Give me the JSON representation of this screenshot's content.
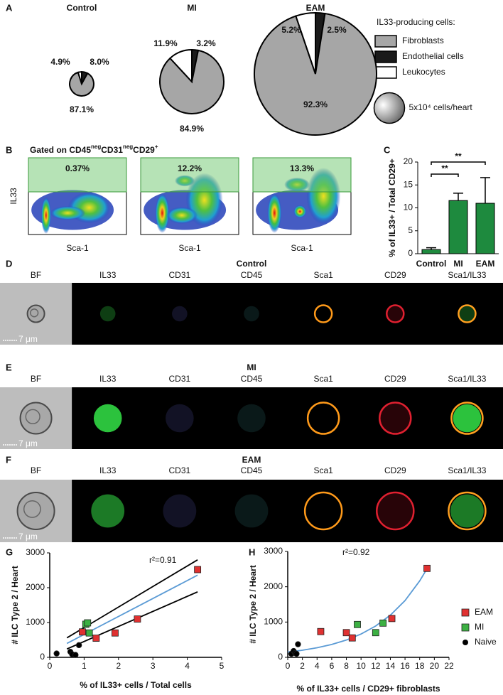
{
  "chart_data": [
    {
      "type": "pie",
      "panel": "A",
      "title": "Control",
      "categories": [
        "Fibroblasts",
        "Endothelial cells",
        "Leukocytes"
      ],
      "values": [
        87.1,
        8.0,
        4.9
      ],
      "value_labels": [
        "87.1%",
        "8.0%",
        "4.9%"
      ],
      "colors": [
        "#a6a6a6",
        "#1a1a1a",
        "#ffffff"
      ],
      "size": 31000,
      "legend_title": "IL33-producing cells:",
      "size_legend": {
        "value": 50000,
        "label": "5x10⁴ cells/heart"
      }
    },
    {
      "type": "pie",
      "title": "MI",
      "categories": [
        "Fibroblasts",
        "Endothelial cells",
        "Leukocytes"
      ],
      "values": [
        84.9,
        3.2,
        11.9
      ],
      "value_labels": [
        "84.9%",
        "3.2%",
        "11.9%"
      ],
      "colors": [
        "#a6a6a6",
        "#1a1a1a",
        "#ffffff"
      ],
      "size": 219000
    },
    {
      "type": "pie",
      "title": "EAM",
      "categories": [
        "Fibroblasts",
        "Endothelial cells",
        "Leukocytes"
      ],
      "values": [
        92.3,
        2.5,
        5.2
      ],
      "value_labels": [
        "92.3%",
        "2.5%",
        "5.2%"
      ],
      "colors": [
        "#a6a6a6",
        "#1a1a1a",
        "#ffffff"
      ],
      "size": 800000
    },
    {
      "type": "bar",
      "panel": "C",
      "categories": [
        "Control",
        "MI",
        "EAM"
      ],
      "values": [
        0.9,
        11.6,
        11.0
      ],
      "errors": [
        0.4,
        1.6,
        5.6
      ],
      "color": "#1e8a3e",
      "ylabel": "% of IL33+ / Total CD29+",
      "ylim": [
        0,
        20
      ],
      "yticks": [
        0,
        5,
        10,
        15,
        20
      ],
      "significance": [
        {
          "pair": [
            "Control",
            "EAM"
          ],
          "label": "**"
        },
        {
          "pair": [
            "Control",
            "MI"
          ],
          "label": "**"
        }
      ]
    },
    {
      "type": "scatter",
      "panel": "G",
      "annotation": "r²=0.91",
      "xlabel": "% of IL33+ cells / Total cells",
      "ylabel": "# ILC Type 2 / Heart",
      "xlim": [
        0,
        5
      ],
      "xticks": [
        0,
        1,
        2,
        3,
        4,
        5
      ],
      "ylim": [
        0,
        3000
      ],
      "yticks": [
        0,
        1000,
        2000,
        3000
      ],
      "legend": false,
      "series": [
        {
          "name": "EAM",
          "color": "#e03131",
          "marker": "square",
          "x": [
            0.95,
            1.35,
            1.9,
            2.55,
            4.3
          ],
          "values": [
            730,
            550,
            700,
            1100,
            2520
          ]
        },
        {
          "name": "MI",
          "color": "#3cb043",
          "marker": "square",
          "x": [
            1.05,
            1.1,
            1.15
          ],
          "values": [
            950,
            990,
            700
          ]
        },
        {
          "name": "Naive",
          "color": "#000000",
          "marker": "circle",
          "x": [
            0.2,
            0.6,
            0.65,
            0.75,
            0.85
          ],
          "values": [
            110,
            160,
            90,
            70,
            350
          ]
        }
      ],
      "lines": [
        {
          "color": "#000000",
          "x": [
            0.5,
            4.3
          ],
          "values": [
            560,
            2800
          ]
        },
        {
          "color": "#000000",
          "x": [
            0.5,
            4.3
          ],
          "values": [
            240,
            1880
          ]
        },
        {
          "color": "#5b9bd5",
          "x": [
            0.5,
            4.3
          ],
          "values": [
            400,
            2360
          ]
        }
      ]
    },
    {
      "type": "scatter",
      "panel": "H",
      "annotation": "r²=0.92",
      "xlabel": "% of IL33+ cells / CD29+ fibroblasts",
      "ylabel": "# ILC Type 2 / Heart",
      "xlim": [
        0,
        22
      ],
      "xticks": [
        0,
        2,
        4,
        6,
        8,
        10,
        12,
        14,
        16,
        18,
        20,
        22
      ],
      "ylim": [
        0,
        3000
      ],
      "yticks": [
        0,
        1000,
        2000,
        3000
      ],
      "legend": true,
      "series": [
        {
          "name": "EAM",
          "color": "#e03131",
          "marker": "square",
          "x": [
            4.5,
            8,
            8.8,
            14.2,
            19
          ],
          "values": [
            730,
            700,
            550,
            1100,
            2520
          ]
        },
        {
          "name": "MI",
          "color": "#3cb043",
          "marker": "square",
          "x": [
            9.5,
            12,
            13
          ],
          "values": [
            930,
            700,
            970
          ]
        },
        {
          "name": "Naive",
          "color": "#000000",
          "marker": "circle",
          "x": [
            0.5,
            0.8,
            1.0,
            1.2,
            1.4
          ],
          "values": [
            100,
            180,
            120,
            100,
            370
          ]
        }
      ],
      "lines": [
        {
          "color": "#5b9bd5",
          "x": [
            0,
            2,
            4,
            6,
            8,
            10,
            12,
            14,
            16,
            18,
            19
          ],
          "values": [
            150,
            201,
            272,
            364,
            490,
            660,
            888,
            1195,
            1608,
            2165,
            2510
          ]
        }
      ]
    }
  ],
  "flow": {
    "panel": "B",
    "gating": [
      "Gated on CD45",
      "neg",
      "CD31",
      "neg",
      "CD29",
      "+"
    ],
    "y_label": "IL33",
    "x_label": "Sca-1",
    "gates": [
      "0.37%",
      "12.2%",
      "13.3%"
    ]
  },
  "imaging": {
    "rows": [
      {
        "panel": "D",
        "title": "Control"
      },
      {
        "panel": "E",
        "title": "MI"
      },
      {
        "panel": "F",
        "title": "EAM"
      }
    ],
    "channels": [
      "BF",
      "IL33",
      "CD31",
      "CD45",
      "Sca1",
      "CD29",
      "Sca1/IL33"
    ],
    "scale_bar": "7 μm"
  }
}
